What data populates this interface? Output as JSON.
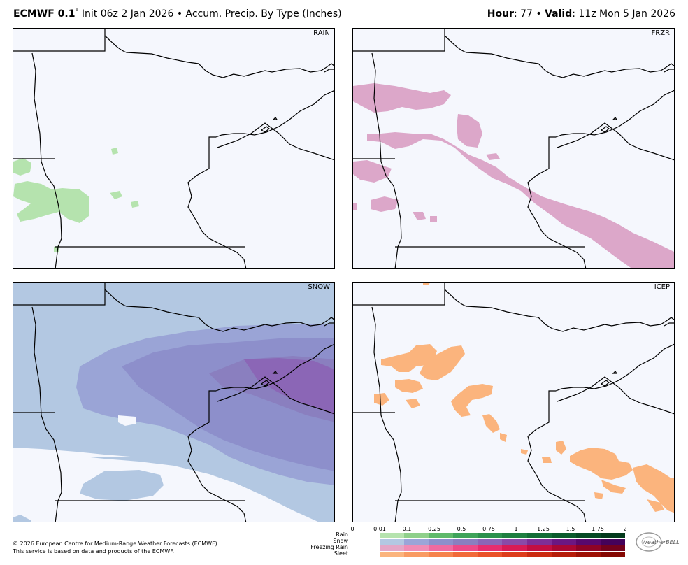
{
  "header": {
    "model": "ECMWF 0.1",
    "degree": "°",
    "init": " Init 06z 2 Jan 2026 • Accum. Precip. By Type (Inches)",
    "hour_label": "Hour",
    "hour_value": ": 77 • ",
    "valid_label": "Valid",
    "valid_value": ": 11z Mon 5 Jan 2026"
  },
  "panels": {
    "rain": {
      "label": "RAIN"
    },
    "frzr": {
      "label": "FRZR"
    },
    "snow": {
      "label": "SNOW"
    },
    "icep": {
      "label": "ICEP"
    }
  },
  "footer": {
    "line1": "© 2026 European Centre for Medium-Range Weather Forecasts (ECMWF).",
    "line2": "This service is based on data and products of the ECMWF."
  },
  "legend": {
    "ticks": [
      "0",
      "0.01",
      "0.1",
      "0.25",
      "0.5",
      "0.75",
      "1",
      "1.25",
      "1.5",
      "1.75",
      "2"
    ],
    "rows": [
      "Rain",
      "Snow",
      "Freezing Rain",
      "Sleet"
    ],
    "colors": {
      "rain": [
        "#b5e3ae",
        "#8fd08b",
        "#5fb96a",
        "#3fa35a",
        "#2c914d",
        "#1f7f41",
        "#136d36",
        "#0b5b2c",
        "#064a24",
        "#033a1c"
      ],
      "snow": [
        "#b3c8e2",
        "#9ba5d8",
        "#8d8fcb",
        "#8a7fbf",
        "#8b66b6",
        "#8a4aa8",
        "#7e2e96",
        "#6b1782",
        "#58086d",
        "#44025a"
      ],
      "frzr": [
        "#e4a6c6",
        "#f08cb5",
        "#ef6aa0",
        "#ec4a88",
        "#e62e6e",
        "#d81b56",
        "#c20e42",
        "#a90733",
        "#8e0326",
        "#73011c"
      ],
      "sleet": [
        "#fbb47d",
        "#f99b62",
        "#f6834c",
        "#f16a39",
        "#ea5228",
        "#dd3d1b",
        "#cb2b10",
        "#b51d09",
        "#9d1104",
        "#850802"
      ]
    }
  },
  "logo": {
    "text": "WeatherBELL"
  }
}
